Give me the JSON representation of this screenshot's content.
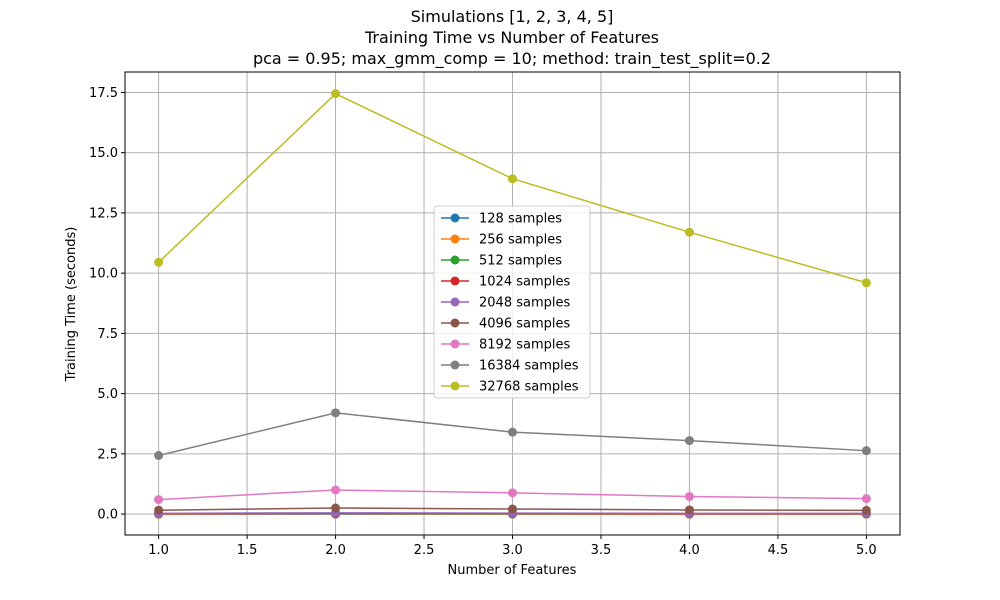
{
  "chart_data": {
    "type": "line",
    "title": [
      "Simulations [1, 2, 3, 4, 5]",
      "Training Time vs Number of Features",
      "pca = 0.95; max_gmm_comp = 10; method: train_test_split=0.2"
    ],
    "xlabel": "Number of Features",
    "ylabel": "Training Time (seconds)",
    "xlim": [
      0.81,
      5.19
    ],
    "ylim": [
      -0.87,
      18.35
    ],
    "xticks": [
      1.0,
      1.5,
      2.0,
      2.5,
      3.0,
      3.5,
      4.0,
      4.5,
      5.0
    ],
    "xtick_labels": [
      "1.0",
      "1.5",
      "2.0",
      "2.5",
      "3.0",
      "3.5",
      "4.0",
      "4.5",
      "5.0"
    ],
    "yticks": [
      0.0,
      2.5,
      5.0,
      7.5,
      10.0,
      12.5,
      15.0,
      17.5
    ],
    "ytick_labels": [
      "0.0",
      "2.5",
      "5.0",
      "7.5",
      "10.0",
      "12.5",
      "15.0",
      "17.5"
    ],
    "grid": true,
    "legend_position": "center",
    "x": [
      1,
      2,
      3,
      4,
      5
    ],
    "series": [
      {
        "name": "128 samples",
        "color": "#1f77b4",
        "values": [
          0.0,
          0.0,
          0.0,
          0.0,
          0.0
        ]
      },
      {
        "name": "256 samples",
        "color": "#ff7f0e",
        "values": [
          0.0,
          0.01,
          0.0,
          0.0,
          0.0
        ]
      },
      {
        "name": "512 samples",
        "color": "#2ca02c",
        "values": [
          0.01,
          0.01,
          0.01,
          0.01,
          0.01
        ]
      },
      {
        "name": "1024 samples",
        "color": "#d62728",
        "values": [
          0.01,
          0.02,
          0.02,
          0.01,
          0.01
        ]
      },
      {
        "name": "2048 samples",
        "color": "#9467bd",
        "values": [
          0.03,
          0.05,
          0.04,
          0.03,
          0.03
        ]
      },
      {
        "name": "4096 samples",
        "color": "#8c564b",
        "values": [
          0.16,
          0.25,
          0.21,
          0.17,
          0.15
        ]
      },
      {
        "name": "8192 samples",
        "color": "#e377c2",
        "values": [
          0.6,
          1.0,
          0.88,
          0.73,
          0.64
        ]
      },
      {
        "name": "16384 samples",
        "color": "#7f7f7f",
        "values": [
          2.43,
          4.2,
          3.4,
          3.05,
          2.63
        ]
      },
      {
        "name": "32768 samples",
        "color": "#bcbd22",
        "values": [
          10.45,
          17.45,
          13.92,
          11.7,
          9.6
        ]
      }
    ]
  }
}
